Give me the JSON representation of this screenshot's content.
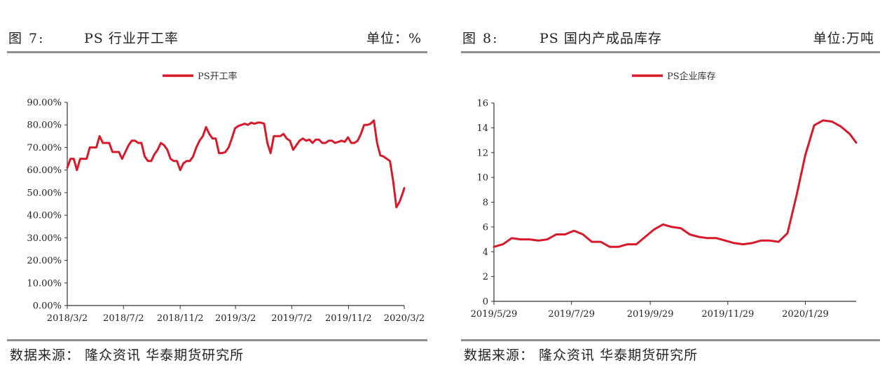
{
  "panels": [
    {
      "figure": "图 7:",
      "title": "PS 行业开工率",
      "unit": "单位：%",
      "source": "数据来源：  隆众资讯  华泰期货研究所"
    },
    {
      "figure": "图 8:",
      "title": "PS 国内产成品库存",
      "unit": "单位:万吨",
      "source": "数据来源：  隆众资讯  华泰期货研究所"
    }
  ],
  "colors": {
    "series": "#d7192a",
    "axis": "#333333",
    "rule": "#8f8f8f"
  },
  "chart_data": [
    {
      "type": "line",
      "legend": "PS开工率",
      "legend_position": "top-center",
      "grid": false,
      "ylim": [
        0,
        90
      ],
      "y_ticks": [
        "0.00%",
        "10.00%",
        "20.00%",
        "30.00%",
        "40.00%",
        "50.00%",
        "60.00%",
        "70.00%",
        "80.00%",
        "90.00%"
      ],
      "x_ticks": [
        "2018/3/2",
        "2018/7/2",
        "2018/11/2",
        "2019/3/2",
        "2019/7/2",
        "2019/11/2",
        "2020/3/2"
      ],
      "x_range": [
        "2018-03-02",
        "2020-03-02"
      ],
      "series": [
        {
          "x": [
            "2018-03-02",
            "2018-03-09",
            "2018-03-16",
            "2018-03-23",
            "2018-03-30",
            "2018-04-06",
            "2018-04-13",
            "2018-04-20",
            "2018-04-27",
            "2018-05-04",
            "2018-05-11",
            "2018-05-18",
            "2018-05-25",
            "2018-06-01",
            "2018-06-08",
            "2018-06-15",
            "2018-06-22",
            "2018-06-29",
            "2018-07-06",
            "2018-07-13",
            "2018-07-20",
            "2018-07-27",
            "2018-08-03",
            "2018-08-10",
            "2018-08-17",
            "2018-08-24",
            "2018-08-31",
            "2018-09-07",
            "2018-09-14",
            "2018-09-21",
            "2018-09-28",
            "2018-10-05",
            "2018-10-12",
            "2018-10-19",
            "2018-10-26",
            "2018-11-02",
            "2018-11-09",
            "2018-11-16",
            "2018-11-23",
            "2018-11-30",
            "2018-12-07",
            "2018-12-14",
            "2018-12-21",
            "2018-12-28",
            "2019-01-04",
            "2019-01-11",
            "2019-01-18",
            "2019-01-25",
            "2019-02-01",
            "2019-02-08",
            "2019-02-15",
            "2019-02-22",
            "2019-03-01",
            "2019-03-08",
            "2019-03-15",
            "2019-03-22",
            "2019-03-29",
            "2019-04-05",
            "2019-04-12",
            "2019-04-19",
            "2019-04-26",
            "2019-05-03",
            "2019-05-10",
            "2019-05-17",
            "2019-05-24",
            "2019-05-31",
            "2019-06-07",
            "2019-06-14",
            "2019-06-21",
            "2019-06-28",
            "2019-07-05",
            "2019-07-12",
            "2019-07-19",
            "2019-07-26",
            "2019-08-02",
            "2019-08-09",
            "2019-08-16",
            "2019-08-23",
            "2019-08-30",
            "2019-09-06",
            "2019-09-13",
            "2019-09-20",
            "2019-09-27",
            "2019-10-04",
            "2019-10-11",
            "2019-10-18",
            "2019-10-25",
            "2019-11-01",
            "2019-11-08",
            "2019-11-15",
            "2019-11-22",
            "2019-11-29",
            "2019-12-06",
            "2019-12-13",
            "2019-12-20",
            "2019-12-27",
            "2020-01-03",
            "2020-01-10",
            "2020-01-17",
            "2020-01-24",
            "2020-01-31",
            "2020-02-07",
            "2020-02-14",
            "2020-02-21",
            "2020-02-28",
            "2020-03-02"
          ],
          "y": [
            61,
            65,
            65,
            60,
            65,
            65,
            65,
            70,
            70,
            70,
            75,
            72,
            72,
            72,
            68,
            68,
            68,
            65,
            68,
            71,
            73,
            73,
            72,
            72,
            66,
            64,
            64,
            67,
            69,
            72,
            71,
            69,
            65,
            64,
            64,
            60,
            63,
            64,
            64,
            66,
            70,
            73,
            75,
            79,
            76,
            74,
            74,
            67.5,
            67.5,
            68,
            70,
            74,
            78.5,
            79.5,
            80,
            80.5,
            80,
            81,
            80.5,
            81,
            81,
            80.5,
            72,
            67.5,
            75,
            75,
            75,
            76,
            74,
            73,
            69,
            71,
            73,
            74,
            73,
            73.5,
            72,
            73.5,
            73.5,
            72,
            72,
            73,
            73,
            72,
            72.5,
            73,
            72.5,
            74.5,
            72,
            72,
            73,
            76,
            80,
            80,
            80.5,
            82,
            72,
            66.5,
            66,
            65,
            64,
            55,
            43.5,
            46,
            50,
            52
          ]
        }
      ]
    },
    {
      "type": "line",
      "legend": "PS企业库存",
      "legend_position": "top-center",
      "grid": false,
      "ylim": [
        0,
        16
      ],
      "y_ticks": [
        "0",
        "2",
        "4",
        "6",
        "8",
        "10",
        "12",
        "14",
        "16"
      ],
      "x_ticks": [
        "2019/5/29",
        "2019/7/29",
        "2019/9/29",
        "2019/11/29",
        "2020/1/29"
      ],
      "x_range": [
        "2019-05-29",
        "2020-03-09"
      ],
      "series": [
        {
          "x": [
            "2019-05-29",
            "2019-06-05",
            "2019-06-12",
            "2019-06-19",
            "2019-06-26",
            "2019-07-03",
            "2019-07-10",
            "2019-07-17",
            "2019-07-24",
            "2019-07-31",
            "2019-08-07",
            "2019-08-14",
            "2019-08-21",
            "2019-08-28",
            "2019-09-04",
            "2019-09-11",
            "2019-09-18",
            "2019-09-25",
            "2019-10-02",
            "2019-10-09",
            "2019-10-16",
            "2019-10-23",
            "2019-10-30",
            "2019-11-06",
            "2019-11-13",
            "2019-11-20",
            "2019-11-27",
            "2019-12-04",
            "2019-12-11",
            "2019-12-18",
            "2019-12-25",
            "2020-01-01",
            "2020-01-08",
            "2020-01-15",
            "2020-01-22",
            "2020-01-29",
            "2020-02-05",
            "2020-02-12",
            "2020-02-19",
            "2020-02-26",
            "2020-03-04",
            "2020-03-09"
          ],
          "y": [
            4.4,
            4.6,
            5.1,
            5.0,
            5.0,
            4.9,
            5.0,
            5.4,
            5.4,
            5.7,
            5.4,
            4.8,
            4.8,
            4.4,
            4.4,
            4.6,
            4.6,
            5.2,
            5.8,
            6.2,
            6.0,
            5.9,
            5.4,
            5.2,
            5.1,
            5.1,
            4.9,
            4.7,
            4.6,
            4.7,
            4.9,
            4.9,
            4.8,
            5.5,
            8.5,
            11.8,
            14.2,
            14.6,
            14.5,
            14.1,
            13.5,
            12.8
          ]
        }
      ]
    }
  ]
}
